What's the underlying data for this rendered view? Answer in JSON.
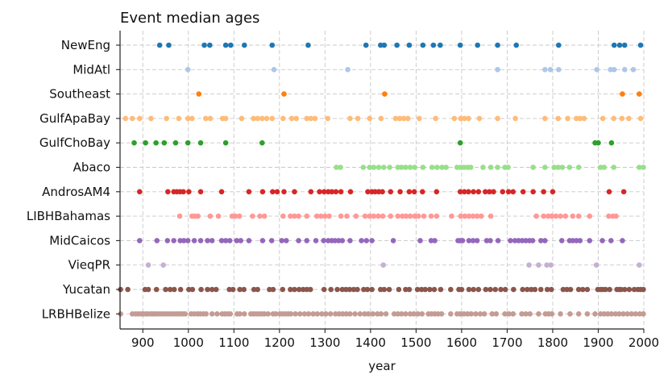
{
  "chart_data": {
    "type": "scatter",
    "title": "Event median ages",
    "xlabel": "year",
    "ylabel": "",
    "xlim": [
      850,
      2000
    ],
    "xticks": [
      900,
      1000,
      1100,
      1200,
      1300,
      1400,
      1500,
      1600,
      1700,
      1800,
      1900,
      2000
    ],
    "grid": true,
    "categories": [
      "NewEng",
      "MidAtl",
      "Southeast",
      "GulfApaBay",
      "GulfChoBay",
      "Abaco",
      "AndrosAM4",
      "LIBHBahamas",
      "MidCaicos",
      "VieqPR",
      "Yucatan",
      "LRBHBelize"
    ],
    "series": [
      {
        "name": "NewEng",
        "color": "#1f77b4",
        "x": [
          937,
          957,
          1035,
          1047,
          1082,
          1093,
          1123,
          1184,
          1263,
          1390,
          1422,
          1430,
          1458,
          1485,
          1515,
          1538,
          1553,
          1597,
          1635,
          1679,
          1720,
          1813,
          1935,
          1947,
          1958,
          1993
        ]
      },
      {
        "name": "MidAtl",
        "color": "#aec7e8",
        "x": [
          999,
          1188,
          1350,
          1679,
          1783,
          1795,
          1813,
          1897,
          1927,
          1935,
          1958,
          1977
        ]
      },
      {
        "name": "Southeast",
        "color": "#ff7f0e",
        "x": [
          1023,
          1210,
          1431,
          1953,
          1990
        ]
      },
      {
        "name": "GulfApaBay",
        "color": "#ffbb78",
        "x": [
          862,
          877,
          893,
          918,
          952,
          979,
          999,
          1008,
          1038,
          1048,
          1075,
          1082,
          1117,
          1143,
          1152,
          1162,
          1172,
          1184,
          1208,
          1227,
          1237,
          1260,
          1269,
          1278,
          1306,
          1355,
          1372,
          1398,
          1423,
          1455,
          1464,
          1473,
          1482,
          1507,
          1543,
          1584,
          1598,
          1606,
          1615,
          1639,
          1679,
          1718,
          1783,
          1812,
          1833,
          1852,
          1860,
          1869,
          1910,
          1934,
          1952,
          1967,
          1993
        ]
      },
      {
        "name": "GulfChoBay",
        "color": "#2ca02c",
        "x": [
          881,
          906,
          929,
          947,
          972,
          999,
          1027,
          1082,
          1162,
          1597,
          1893,
          1900,
          1929
        ]
      },
      {
        "name": "Abaco",
        "color": "#98df8a",
        "x": [
          1325,
          1334,
          1384,
          1398,
          1407,
          1418,
          1429,
          1442,
          1460,
          1468,
          1477,
          1487,
          1497,
          1515,
          1535,
          1546,
          1557,
          1566,
          1590,
          1598,
          1605,
          1613,
          1620,
          1647,
          1664,
          1679,
          1695,
          1702,
          1757,
          1783,
          1803,
          1812,
          1821,
          1837,
          1857,
          1905,
          1913,
          1934,
          1990,
          1999
        ]
      },
      {
        "name": "AndrosAM4",
        "color": "#d62728",
        "x": [
          893,
          955,
          968,
          975,
          982,
          989,
          1001,
          1027,
          1073,
          1133,
          1163,
          1185,
          1195,
          1210,
          1233,
          1269,
          1288,
          1298,
          1307,
          1315,
          1324,
          1335,
          1356,
          1394,
          1403,
          1410,
          1418,
          1426,
          1444,
          1465,
          1485,
          1496,
          1514,
          1545,
          1597,
          1606,
          1615,
          1626,
          1637,
          1652,
          1661,
          1670,
          1690,
          1703,
          1713,
          1735,
          1757,
          1780,
          1800,
          1924,
          1956
        ]
      },
      {
        "name": "LIBHBahamas",
        "color": "#ff9896",
        "x": [
          981,
          1008,
          1014,
          1021,
          1048,
          1066,
          1096,
          1103,
          1112,
          1141,
          1157,
          1167,
          1208,
          1224,
          1233,
          1242,
          1260,
          1282,
          1291,
          1300,
          1309,
          1335,
          1348,
          1368,
          1388,
          1398,
          1407,
          1417,
          1427,
          1444,
          1460,
          1470,
          1478,
          1487,
          1497,
          1505,
          1517,
          1533,
          1545,
          1578,
          1598,
          1607,
          1616,
          1625,
          1634,
          1643,
          1664,
          1764,
          1780,
          1790,
          1798,
          1807,
          1817,
          1828,
          1844,
          1857,
          1881,
          1923,
          1932,
          1939
        ]
      },
      {
        "name": "MidCaicos",
        "color": "#9467bd",
        "x": [
          893,
          931,
          954,
          968,
          982,
          990,
          999,
          1013,
          1027,
          1042,
          1052,
          1073,
          1082,
          1091,
          1106,
          1115,
          1133,
          1163,
          1183,
          1205,
          1215,
          1242,
          1260,
          1280,
          1297,
          1307,
          1315,
          1322,
          1330,
          1338,
          1355,
          1380,
          1391,
          1403,
          1450,
          1509,
          1533,
          1541,
          1592,
          1597,
          1602,
          1616,
          1625,
          1634,
          1655,
          1663,
          1680,
          1707,
          1717,
          1725,
          1733,
          1741,
          1749,
          1756,
          1774,
          1783,
          1820,
          1837,
          1844,
          1852,
          1860,
          1881,
          1909,
          1928,
          1953
        ]
      },
      {
        "name": "VieqPR",
        "color": "#c5b0d5",
        "x": [
          912,
          945,
          1428,
          1748,
          1769,
          1787,
          1796,
          1896,
          1990
        ]
      },
      {
        "name": "Yucatan",
        "color": "#8c564b",
        "x": [
          851,
          867,
          905,
          912,
          930,
          950,
          960,
          969,
          983,
          1001,
          1009,
          1028,
          1042,
          1052,
          1061,
          1090,
          1098,
          1113,
          1122,
          1144,
          1152,
          1178,
          1186,
          1207,
          1224,
          1233,
          1243,
          1252,
          1260,
          1268,
          1298,
          1313,
          1327,
          1338,
          1346,
          1354,
          1363,
          1371,
          1385,
          1393,
          1403,
          1422,
          1430,
          1441,
          1462,
          1477,
          1485,
          1503,
          1512,
          1520,
          1530,
          1540,
          1554,
          1576,
          1594,
          1600,
          1616,
          1626,
          1637,
          1653,
          1663,
          1674,
          1686,
          1696,
          1714,
          1734,
          1744,
          1753,
          1761,
          1774,
          1788,
          1797,
          1823,
          1831,
          1839,
          1857,
          1866,
          1876,
          1899,
          1905,
          1910,
          1916,
          1925,
          1941,
          1946,
          1950,
          1958,
          1968,
          1979,
          1987,
          1993,
          1999
        ]
      },
      {
        "name": "LRBHBelize",
        "color": "#c49c94",
        "x": [
          851,
          877,
          884,
          890,
          896,
          901,
          907,
          912,
          918,
          923,
          928,
          934,
          940,
          946,
          952,
          958,
          964,
          970,
          976,
          982,
          987,
          993,
          1006,
          1013,
          1020,
          1026,
          1033,
          1039,
          1052,
          1063,
          1074,
          1080,
          1086,
          1092,
          1107,
          1113,
          1123,
          1137,
          1143,
          1149,
          1155,
          1161,
          1167,
          1175,
          1186,
          1192,
          1201,
          1207,
          1213,
          1219,
          1225,
          1235,
          1245,
          1255,
          1264,
          1274,
          1283,
          1293,
          1302,
          1312,
          1323,
          1331,
          1339,
          1347,
          1355,
          1366,
          1377,
          1387,
          1395,
          1405,
          1415,
          1423,
          1434,
          1452,
          1460,
          1468,
          1477,
          1487,
          1495,
          1504,
          1513,
          1527,
          1534,
          1541,
          1548,
          1556,
          1576,
          1590,
          1597,
          1605,
          1613,
          1621,
          1631,
          1641,
          1650,
          1667,
          1676,
          1695,
          1704,
          1713,
          1732,
          1741,
          1750,
          1769,
          1784,
          1791,
          1798,
          1817,
          1838,
          1857,
          1876,
          1893,
          1905,
          1913,
          1921,
          1929,
          1938,
          1946,
          1955,
          1964,
          1973,
          1982,
          1991,
          1999
        ]
      }
    ]
  }
}
